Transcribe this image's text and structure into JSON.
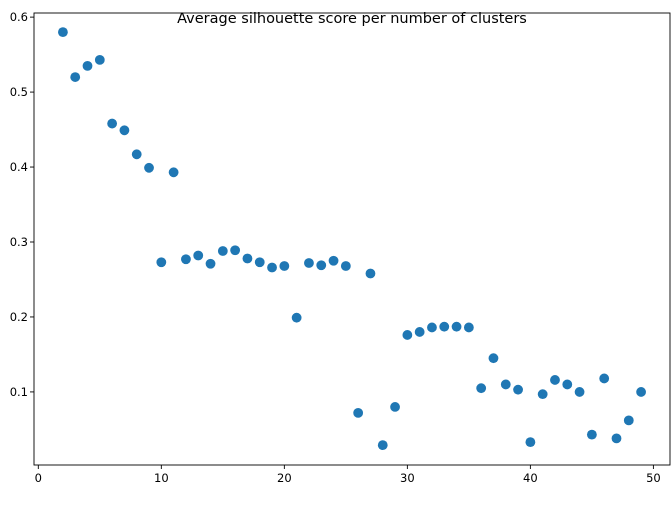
{
  "chart_data": {
    "type": "scatter",
    "title": "Average silhouette score per number of clusters",
    "xlabel": "",
    "ylabel": "",
    "xlim": [
      -0.35,
      51.35
    ],
    "ylim": [
      0.0025,
      0.6055
    ],
    "xticks": [
      0,
      10,
      20,
      30,
      40,
      50
    ],
    "xtick_labels": [
      "0",
      "10",
      "20",
      "30",
      "40",
      "50"
    ],
    "yticks": [
      0.1,
      0.2,
      0.3,
      0.4,
      0.5,
      0.6
    ],
    "ytick_labels": [
      "0.1",
      "0.2",
      "0.3",
      "0.4",
      "0.5",
      "0.6"
    ],
    "grid": false,
    "marker_color": "#1f77b4",
    "series": [
      {
        "x": [
          2,
          3,
          4,
          5,
          6,
          7,
          8,
          9,
          10,
          11,
          12,
          13,
          14,
          15,
          16,
          17,
          18,
          19,
          20,
          21,
          22,
          23,
          24,
          25,
          26,
          27,
          28,
          29,
          30,
          31,
          32,
          33,
          34,
          35,
          36,
          37,
          38,
          39,
          40,
          41,
          42,
          43,
          44,
          45,
          46,
          47,
          48,
          49
        ],
        "y": [
          0.58,
          0.52,
          0.535,
          0.543,
          0.458,
          0.449,
          0.417,
          0.399,
          0.273,
          0.393,
          0.277,
          0.282,
          0.271,
          0.288,
          0.289,
          0.278,
          0.273,
          0.266,
          0.268,
          0.199,
          0.272,
          0.269,
          0.275,
          0.268,
          0.072,
          0.258,
          0.029,
          0.08,
          0.176,
          0.18,
          0.186,
          0.187,
          0.187,
          0.186,
          0.105,
          0.145,
          0.11,
          0.103,
          0.033,
          0.097,
          0.116,
          0.11,
          0.1,
          0.043,
          0.118,
          0.038,
          0.062,
          0.1
        ]
      }
    ]
  }
}
